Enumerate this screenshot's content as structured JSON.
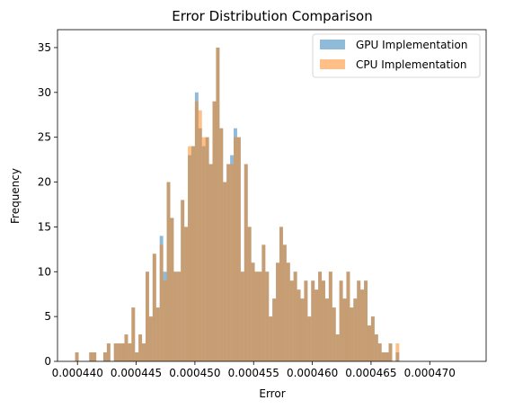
{
  "chart_data": {
    "type": "bar",
    "title": "Error Distribution Comparison",
    "xlabel": "Error",
    "ylabel": "Frequency",
    "xlim": [
      0.0004383,
      0.0004748
    ],
    "ylim": [
      0,
      37
    ],
    "x_ticks": [
      "0.000440",
      "0.000445",
      "0.000450",
      "0.000455",
      "0.000460",
      "0.000465",
      "0.000470"
    ],
    "x_tick_values": [
      0.00044,
      0.000445,
      0.00045,
      0.000455,
      0.00046,
      0.000465,
      0.00047
    ],
    "y_ticks": [
      0,
      5,
      10,
      15,
      20,
      25,
      30,
      35
    ],
    "bin_start": 0.0004398,
    "bin_width": 3e-07,
    "grid": false,
    "legend_position": "top-right",
    "series": [
      {
        "name": "GPU Implementation",
        "color": "#1f77b4",
        "alpha": 0.5,
        "values": [
          1,
          0,
          0,
          0,
          1,
          1,
          0,
          0,
          1,
          2,
          0,
          2,
          2,
          2,
          3,
          2,
          6,
          1,
          3,
          2,
          10,
          5,
          12,
          6,
          14,
          10,
          20,
          16,
          10,
          10,
          18,
          15,
          23,
          24,
          30,
          26,
          24,
          25,
          22,
          29,
          35,
          26,
          20,
          22,
          23,
          26,
          25,
          10,
          22,
          15,
          11,
          10,
          10,
          13,
          10,
          5,
          7,
          11,
          15,
          13,
          11,
          9,
          10,
          8,
          7,
          9,
          5,
          9,
          8,
          10,
          9,
          7,
          10,
          6,
          3,
          9,
          7,
          10,
          6,
          7,
          9,
          8,
          9,
          4,
          5,
          3,
          2,
          1,
          1,
          2,
          0,
          1
        ]
      },
      {
        "name": "CPU Implementation",
        "color": "#ff7f0e",
        "alpha": 0.5,
        "values": [
          1,
          0,
          0,
          0,
          1,
          1,
          0,
          0,
          1,
          2,
          0,
          2,
          2,
          2,
          3,
          2,
          6,
          1,
          3,
          2,
          10,
          5,
          12,
          6,
          13,
          9,
          20,
          16,
          10,
          10,
          18,
          15,
          24,
          24,
          29,
          28,
          25,
          25,
          22,
          29,
          35,
          26,
          20,
          22,
          22,
          25,
          25,
          10,
          22,
          15,
          11,
          10,
          10,
          13,
          10,
          5,
          7,
          11,
          15,
          13,
          11,
          9,
          10,
          8,
          7,
          9,
          5,
          9,
          8,
          10,
          9,
          7,
          10,
          6,
          3,
          9,
          7,
          10,
          6,
          7,
          9,
          8,
          9,
          4,
          5,
          3,
          2,
          1,
          1,
          2,
          0,
          2
        ]
      }
    ]
  }
}
